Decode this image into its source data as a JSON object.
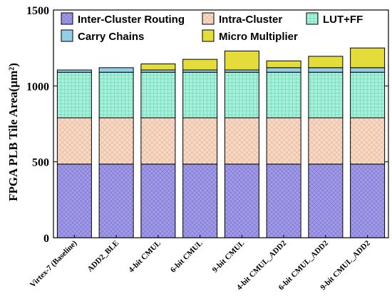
{
  "chart_data": {
    "type": "bar",
    "stacked": true,
    "title": "",
    "xlabel": "",
    "ylabel": "FPGA PLB Tile Area(µm²)",
    "ylim": [
      0,
      1500
    ],
    "yticks": [
      0,
      500,
      1000,
      1500
    ],
    "grid": false,
    "legend_position": "top",
    "categories": [
      "Virtex-7 (Baseline)",
      "ADD2_BLE",
      "4-bit CMUL",
      "6-bit CMUL",
      "9-bit CMUL",
      "4-bit CMUL_ADD2",
      "6-bit CMUL_ADD2",
      "9-bit CMUL_ADD2"
    ],
    "series": [
      {
        "name": "Inter-Cluster Routing",
        "color": "#a29be8",
        "pattern": "crosshatch-diag",
        "values": [
          485,
          485,
          485,
          485,
          485,
          485,
          485,
          485
        ]
      },
      {
        "name": "Intra-Cluster",
        "color": "#f7d9c6",
        "pattern": "crosshatch-diag",
        "values": [
          305,
          305,
          305,
          305,
          305,
          305,
          305,
          305
        ]
      },
      {
        "name": "LUT+FF",
        "color": "#a6f0da",
        "pattern": "grid",
        "values": [
          300,
          300,
          300,
          300,
          300,
          300,
          300,
          300
        ]
      },
      {
        "name": "Carry Chains",
        "color": "#93cde8",
        "pattern": "none",
        "values": [
          15,
          30,
          15,
          15,
          15,
          30,
          30,
          30
        ]
      },
      {
        "name": "Micro Multiplier",
        "color": "#e3dc3a",
        "pattern": "none",
        "values": [
          0,
          0,
          40,
          70,
          125,
          45,
          75,
          130
        ]
      }
    ]
  }
}
